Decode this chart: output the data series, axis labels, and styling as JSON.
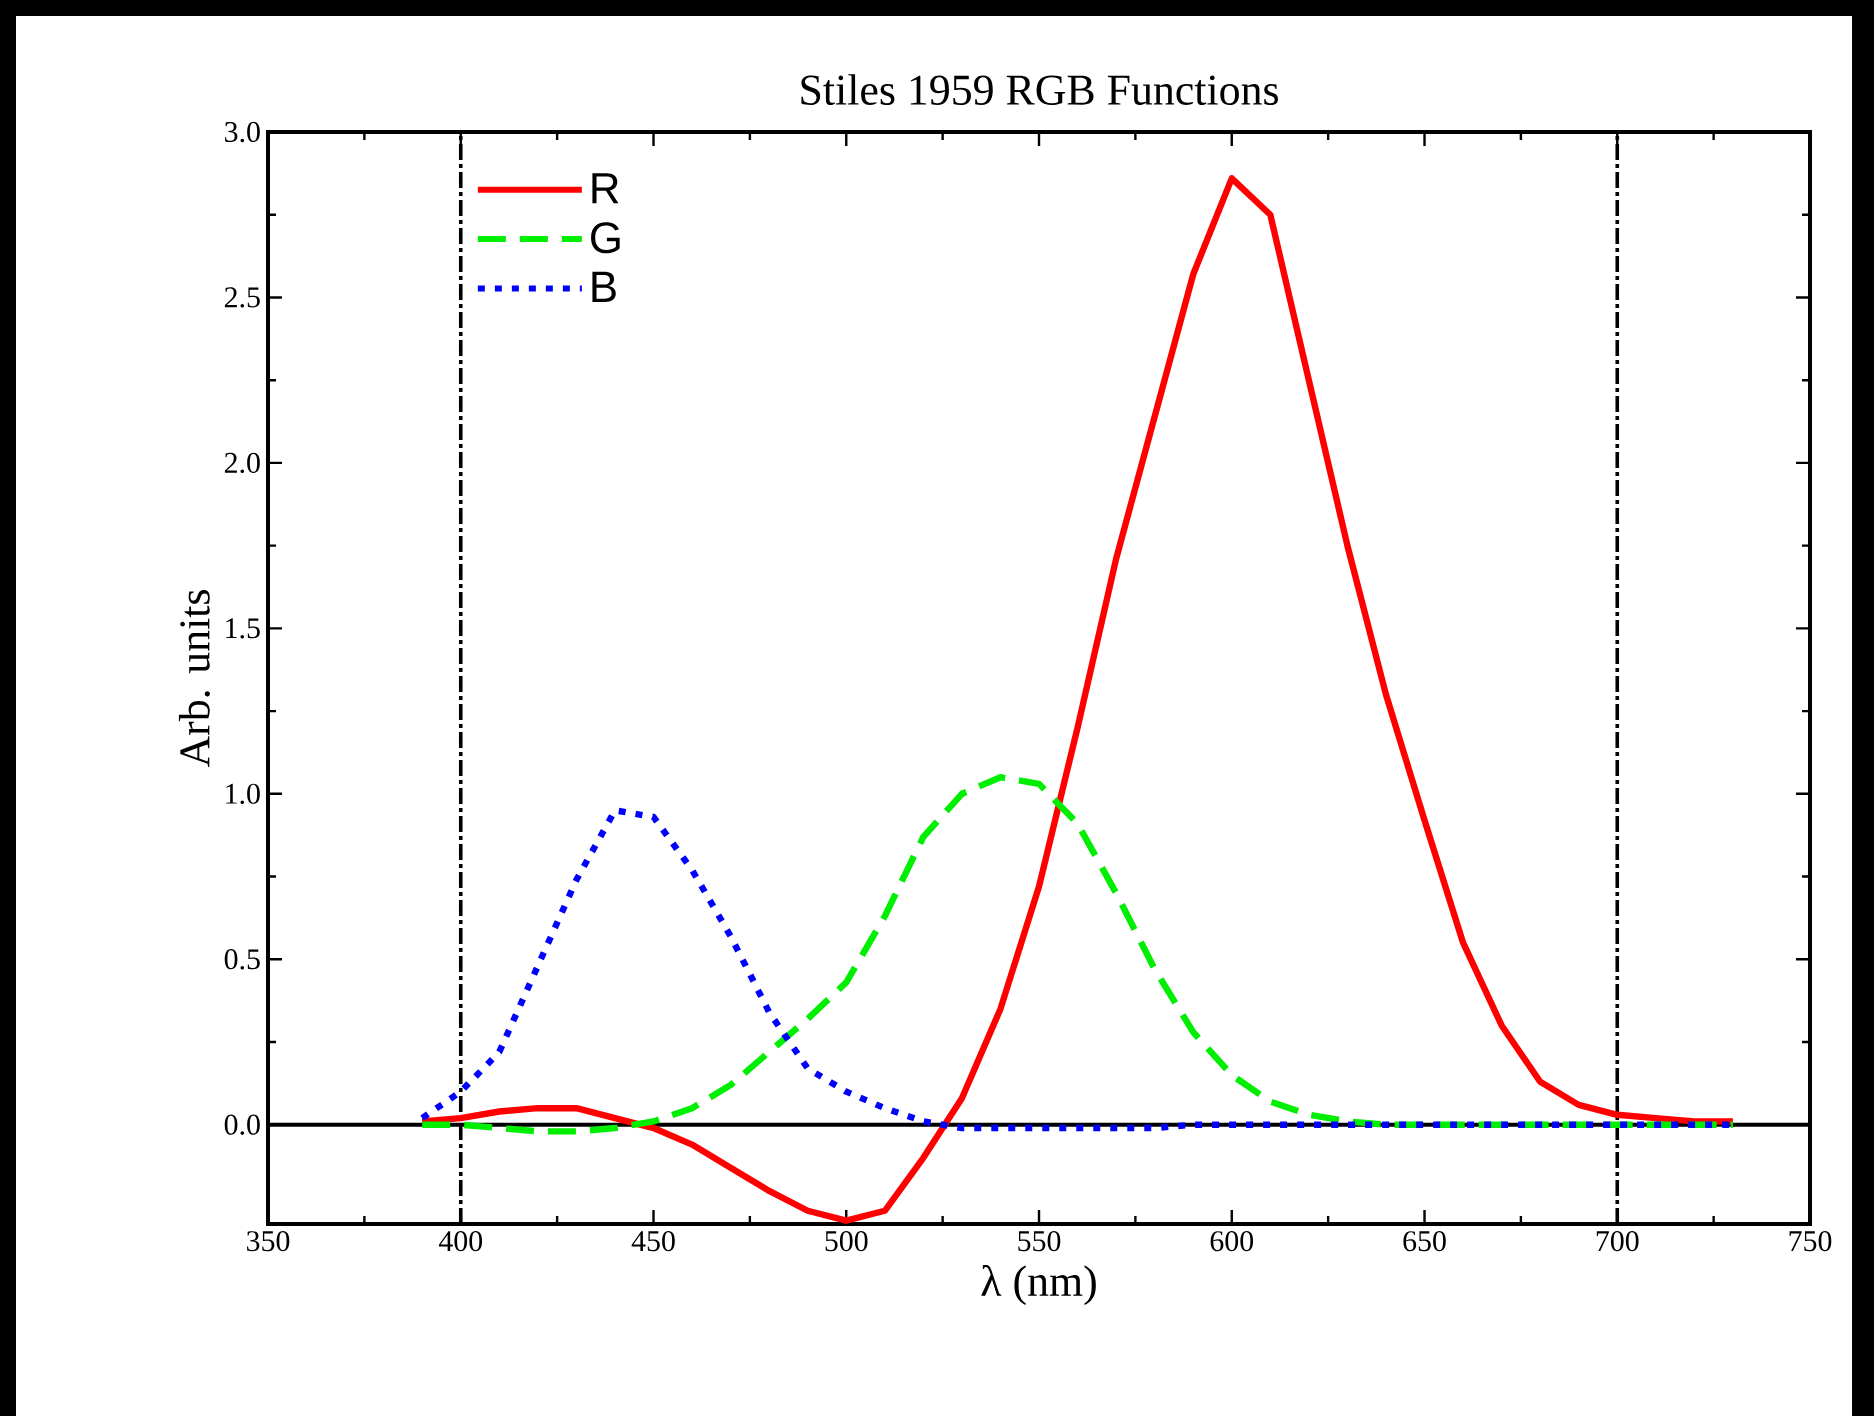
{
  "chart_data": {
    "type": "line",
    "title": "Stiles 1959 RGB Functions",
    "xlabel": "λ (nm)",
    "ylabel": "Arb. units",
    "x": [
      390,
      400,
      410,
      420,
      430,
      440,
      450,
      460,
      470,
      480,
      490,
      500,
      510,
      520,
      530,
      540,
      550,
      560,
      570,
      580,
      590,
      600,
      610,
      620,
      630,
      640,
      650,
      660,
      670,
      680,
      690,
      700,
      710,
      720,
      730
    ],
    "series": [
      {
        "name": "R",
        "color": "#ff0000",
        "line_style": "solid",
        "values": [
          0.01,
          0.02,
          0.04,
          0.05,
          0.05,
          0.02,
          -0.01,
          -0.06,
          -0.13,
          -0.2,
          -0.26,
          -0.29,
          -0.26,
          -0.1,
          0.08,
          0.35,
          0.72,
          1.2,
          1.71,
          2.14,
          2.57,
          2.86,
          2.75,
          2.25,
          1.75,
          1.3,
          0.92,
          0.55,
          0.3,
          0.13,
          0.06,
          0.03,
          0.02,
          0.01,
          0.01
        ]
      },
      {
        "name": "G",
        "color": "#00ee00",
        "line_style": "dashed",
        "values": [
          0,
          0,
          -0.01,
          -0.02,
          -0.02,
          -0.01,
          0.01,
          0.05,
          0.12,
          0.22,
          0.32,
          0.43,
          0.63,
          0.87,
          1.0,
          1.05,
          1.03,
          0.91,
          0.7,
          0.47,
          0.28,
          0.15,
          0.07,
          0.03,
          0.01,
          0,
          0,
          0,
          0,
          0,
          0,
          0,
          0,
          0,
          0
        ]
      },
      {
        "name": "B",
        "color": "#0000ff",
        "line_style": "dotted",
        "values": [
          0.02,
          0.1,
          0.22,
          0.48,
          0.74,
          0.95,
          0.93,
          0.77,
          0.57,
          0.34,
          0.17,
          0.1,
          0.05,
          0.01,
          -0.01,
          -0.01,
          -0.01,
          -0.01,
          -0.01,
          -0.01,
          0,
          0,
          0,
          0,
          0,
          0,
          0,
          0,
          0,
          0,
          0,
          0,
          0,
          0,
          0
        ]
      }
    ],
    "xlim": [
      350,
      750
    ],
    "xticks": [
      350,
      400,
      450,
      500,
      550,
      600,
      650,
      700,
      750
    ],
    "ylim": [
      -0.3,
      3.0
    ],
    "yticks": [
      {
        "value": 0,
        "label": "0.0"
      },
      {
        "value": 0.5,
        "label": "0.5"
      },
      {
        "value": 1,
        "label": "1.0"
      },
      {
        "value": 1.5,
        "label": "1.5"
      },
      {
        "value": 2,
        "label": "2.0"
      },
      {
        "value": 2.5,
        "label": "2.5"
      },
      {
        "value": 3,
        "label": "3.0"
      }
    ],
    "ref_lines": [
      {
        "axis": "x",
        "value": 400,
        "color": "#000000",
        "line_style": "dashdotted"
      },
      {
        "axis": "x",
        "value": 700,
        "color": "#000000",
        "line_style": "dashdotted"
      },
      {
        "axis": "y",
        "value": 0,
        "color": "#000000",
        "line_style": "solid"
      }
    ],
    "legend": "top left",
    "grid": false
  }
}
